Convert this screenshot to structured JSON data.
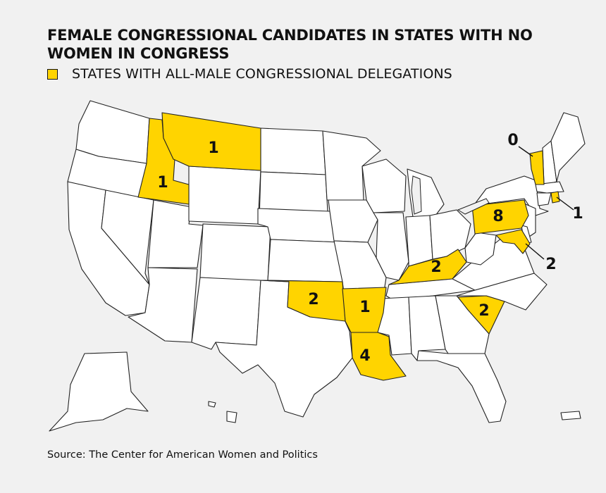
{
  "title": "FEMALE CONGRESSIONAL CANDIDATES IN STATES WITH NO WOMEN IN CONGRESS",
  "legend": {
    "label": "STATES WITH ALL-MALE CONGRESSIONAL DELEGATIONS",
    "color": "#ffd400"
  },
  "source": "Source:  The Center for American Women and Politics",
  "highlight_color": "#ffd400",
  "states": [
    {
      "state": "Idaho",
      "count": "1"
    },
    {
      "state": "Montana",
      "count": "1"
    },
    {
      "state": "Oklahoma",
      "count": "2"
    },
    {
      "state": "Arkansas",
      "count": "1"
    },
    {
      "state": "Louisiana",
      "count": "4"
    },
    {
      "state": "Kentucky",
      "count": "2"
    },
    {
      "state": "South Carolina",
      "count": "2"
    },
    {
      "state": "Pennsylvania",
      "count": "8"
    },
    {
      "state": "Maryland",
      "count": "2"
    },
    {
      "state": "Vermont",
      "count": "0"
    },
    {
      "state": "Rhode Island",
      "count": "1"
    }
  ]
}
